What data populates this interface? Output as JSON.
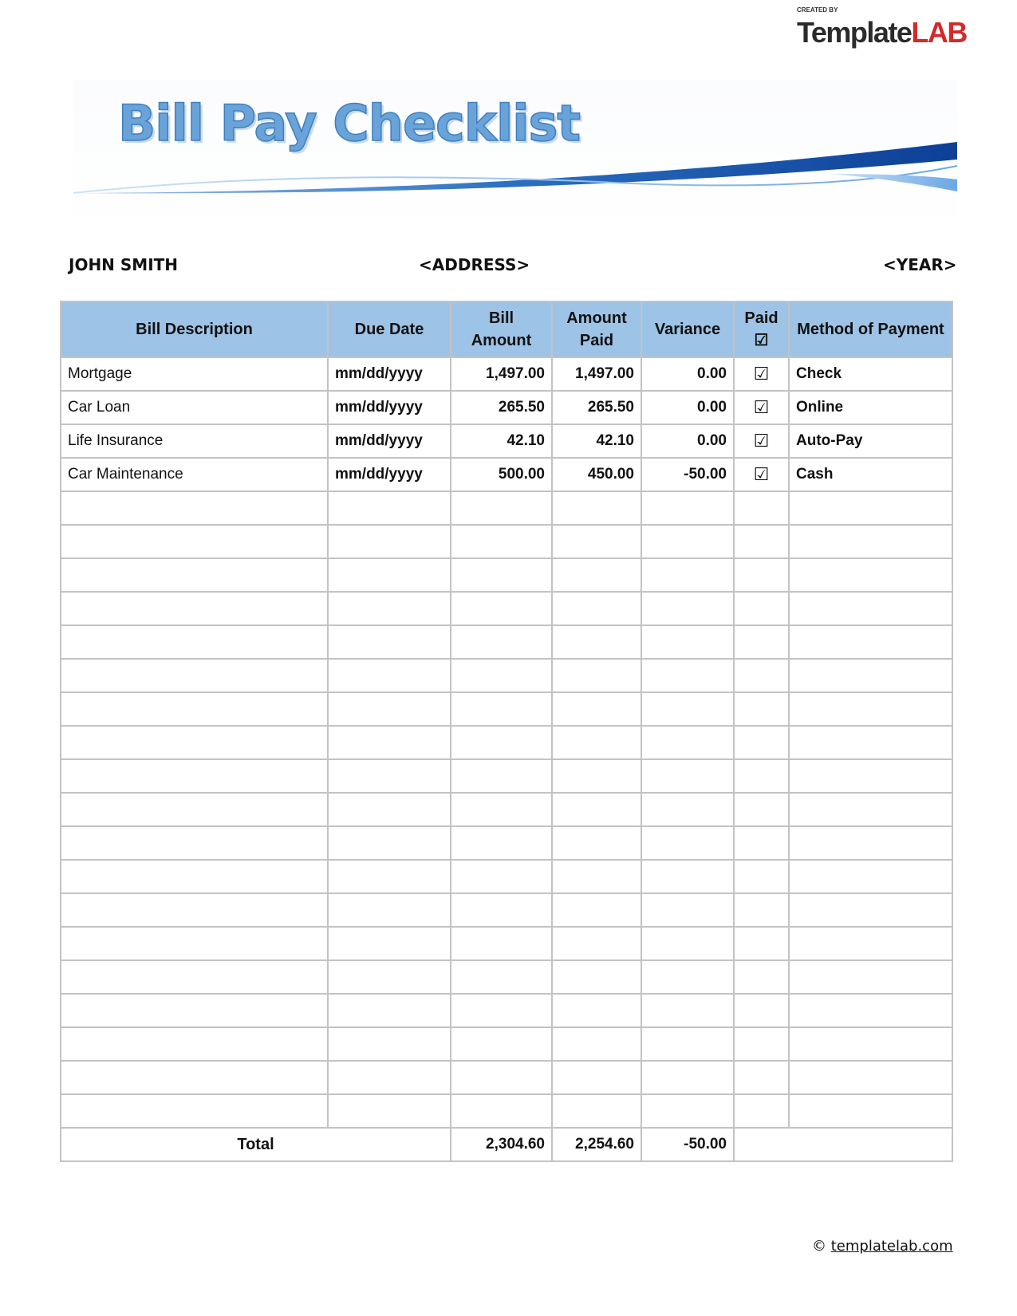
{
  "logo": {
    "created_by": "CREATED BY",
    "name_dark": "Template",
    "name_red": "LAB"
  },
  "title": "Bill Pay Checklist",
  "info": {
    "name": "JOHN SMITH",
    "address": "<ADDRESS>",
    "year": "<YEAR>"
  },
  "table": {
    "headers": [
      "Bill Description",
      "Due Date",
      "Bill Amount",
      "Amount Paid",
      "Variance",
      "Paid ☑",
      "Method of Payment"
    ],
    "rows": [
      {
        "description": "Mortgage",
        "due_date": "mm/dd/yyyy",
        "bill_amount": "1,497.00",
        "amount_paid": "1,497.00",
        "variance": "0.00",
        "paid": "☑",
        "method": "Check"
      },
      {
        "description": "Car Loan",
        "due_date": "mm/dd/yyyy",
        "bill_amount": "265.50",
        "amount_paid": "265.50",
        "variance": "0.00",
        "paid": "☑",
        "method": "Online"
      },
      {
        "description": "Life Insurance",
        "due_date": "mm/dd/yyyy",
        "bill_amount": "42.10",
        "amount_paid": "42.10",
        "variance": "0.00",
        "paid": "☑",
        "method": "Auto-Pay"
      },
      {
        "description": "Car Maintenance",
        "due_date": "mm/dd/yyyy",
        "bill_amount": "500.00",
        "amount_paid": "450.00",
        "variance": "-50.00",
        "paid": "☑",
        "method": "Cash"
      }
    ],
    "empty_rows": 19,
    "total": {
      "label": "Total",
      "bill_amount": "2,304.60",
      "amount_paid": "2,254.60",
      "variance": "-50.00"
    }
  },
  "footer": {
    "copyright": "©",
    "link": "templatelab.com"
  },
  "colors": {
    "header_bg": "#9dc3e6",
    "title": "#6aa3d8",
    "border": "#c3c3c3",
    "logo_red": "#d32a2a"
  }
}
